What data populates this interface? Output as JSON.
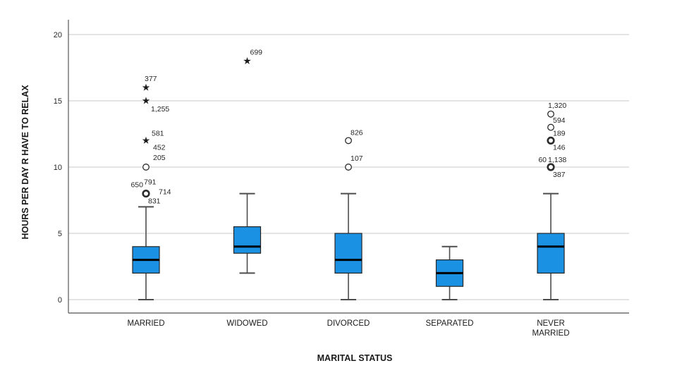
{
  "chart_data": {
    "type": "boxplot",
    "title": "",
    "xlabel": "MARITAL STATUS",
    "ylabel": "HOURS PER DAY R HAVE TO RELAX",
    "ylim": [
      -1,
      21.5
    ],
    "yticks": [
      0,
      5,
      10,
      15,
      20
    ],
    "grid": true,
    "legend": "none",
    "colors": {
      "box_fill": "#1b91e4",
      "box_stroke": "#262626",
      "median": "#000000",
      "whisker": "#4d4d4d",
      "gridline": "#c9c9c9",
      "axis_line": "#6e6e6e",
      "tick_text": "#262626",
      "outlier_stroke": "#2b2b2b",
      "outlier_fill": "#ffffff",
      "star_fill": "#1a1a1a",
      "label_text": "#262626"
    },
    "categories": [
      "MARRIED",
      "WIDOWED",
      "DIVORCED",
      "SEPARATED",
      "NEVER MARRIED"
    ],
    "category_label_lines": [
      [
        "MARRIED"
      ],
      [
        "WIDOWED"
      ],
      [
        "DIVORCED"
      ],
      [
        "SEPARATED"
      ],
      [
        "NEVER",
        "MARRIED"
      ]
    ],
    "boxes": [
      {
        "category": "MARRIED",
        "whisker_low": 0,
        "q1": 2,
        "median": 3,
        "q3": 4,
        "whisker_high": 7,
        "outliers": [
          {
            "value": 8,
            "symbol": "circle",
            "bold": true,
            "labels": [
              {
                "text": "650",
                "dx": -4,
                "dy": -9,
                "anchor": "end"
              },
              {
                "text": "791",
                "dx": -3,
                "dy": -13,
                "anchor": "start"
              },
              {
                "text": "714",
                "dx": 18,
                "dy": 1,
                "anchor": "start"
              },
              {
                "text": "831",
                "dx": 3,
                "dy": 14,
                "anchor": "start"
              }
            ]
          },
          {
            "value": 10,
            "symbol": "circle",
            "bold": false,
            "labels": [
              {
                "text": "205",
                "dx": 10,
                "dy": -10,
                "anchor": "start"
              }
            ]
          },
          {
            "value": 12,
            "symbol": "star",
            "bold": false,
            "labels": [
              {
                "text": "581",
                "dx": 8,
                "dy": -7,
                "anchor": "start"
              },
              {
                "text": "452",
                "dx": 10,
                "dy": 13,
                "anchor": "start"
              }
            ]
          },
          {
            "value": 15,
            "symbol": "star",
            "bold": false,
            "labels": [
              {
                "text": "1,255",
                "dx": 7,
                "dy": 15,
                "anchor": "start"
              }
            ]
          },
          {
            "value": 16,
            "symbol": "star",
            "bold": false,
            "labels": [
              {
                "text": "377",
                "dx": -2,
                "dy": -9,
                "anchor": "start"
              }
            ]
          }
        ]
      },
      {
        "category": "WIDOWED",
        "whisker_low": 2,
        "q1": 3.5,
        "median": 4,
        "q3": 5.5,
        "whisker_high": 8,
        "outliers": [
          {
            "value": 18,
            "symbol": "star",
            "bold": false,
            "labels": [
              {
                "text": "699",
                "dx": 4,
                "dy": -9,
                "anchor": "start"
              }
            ]
          }
        ]
      },
      {
        "category": "DIVORCED",
        "whisker_low": 0,
        "q1": 2,
        "median": 3,
        "q3": 5,
        "whisker_high": 8,
        "outliers": [
          {
            "value": 10,
            "symbol": "circle",
            "bold": false,
            "labels": [
              {
                "text": "107",
                "dx": 3,
                "dy": -9,
                "anchor": "start"
              }
            ]
          },
          {
            "value": 12,
            "symbol": "circle",
            "bold": false,
            "labels": [
              {
                "text": "826",
                "dx": 3,
                "dy": -8,
                "anchor": "start"
              }
            ]
          }
        ]
      },
      {
        "category": "SEPARATED",
        "whisker_low": 0,
        "q1": 1,
        "median": 2,
        "q3": 3,
        "whisker_high": 4,
        "outliers": []
      },
      {
        "category": "NEVER MARRIED",
        "whisker_low": 0,
        "q1": 2,
        "median": 4,
        "q3": 5,
        "whisker_high": 8,
        "outliers": [
          {
            "value": 10,
            "symbol": "circle",
            "bold": true,
            "labels": [
              {
                "text": "60",
                "dx": -6,
                "dy": -7,
                "anchor": "end"
              },
              {
                "text": "1,138",
                "dx": -4,
                "dy": -7,
                "anchor": "start"
              },
              {
                "text": "387",
                "dx": 3,
                "dy": 14,
                "anchor": "start"
              }
            ]
          },
          {
            "value": 12,
            "symbol": "circle",
            "bold": true,
            "labels": [
              {
                "text": "146",
                "dx": 3,
                "dy": 13,
                "anchor": "start"
              }
            ]
          },
          {
            "value": 13,
            "symbol": "circle",
            "bold": false,
            "labels": [
              {
                "text": "189",
                "dx": 3,
                "dy": 12,
                "anchor": "start"
              }
            ]
          },
          {
            "value": 14,
            "symbol": "circle",
            "bold": false,
            "labels": [
              {
                "text": "1,320",
                "dx": -4,
                "dy": -9,
                "anchor": "start"
              },
              {
                "text": "594",
                "dx": 3,
                "dy": 12,
                "anchor": "start"
              }
            ]
          }
        ]
      }
    ]
  }
}
